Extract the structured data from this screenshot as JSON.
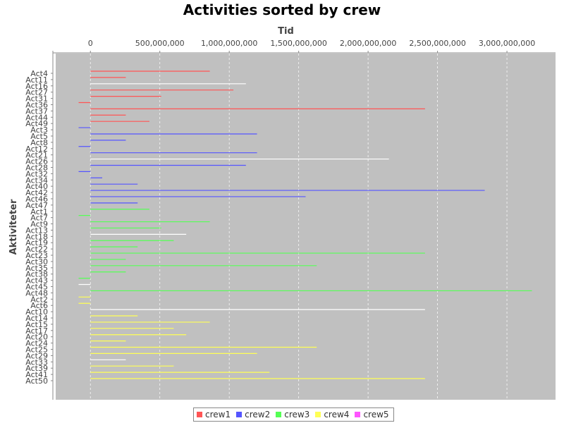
{
  "chart_data": {
    "type": "gantt",
    "title": "Activities sorted by crew",
    "xlabel": "Tid",
    "ylabel": "Aktiviteter",
    "xlim": [
      -250000000,
      3350000000
    ],
    "x_ticks": [
      {
        "value": 0,
        "label": "0"
      },
      {
        "value": 500000000,
        "label": "500,000,000"
      },
      {
        "value": 1000000000,
        "label": "1,000,000,000"
      },
      {
        "value": 1500000000,
        "label": "1,500,000,000"
      },
      {
        "value": 2000000000,
        "label": "2,000,000,000"
      },
      {
        "value": 2500000000,
        "label": "2,500,000,000"
      },
      {
        "value": 3000000000,
        "label": "3,000,000,000"
      }
    ],
    "grid": true,
    "background_color": "#c0c0c0",
    "legend_position": "bottom",
    "series": [
      {
        "name": "crew1",
        "color": "#ff5555"
      },
      {
        "name": "crew2",
        "color": "#5555ff"
      },
      {
        "name": "crew3",
        "color": "#55ff55"
      },
      {
        "name": "crew4",
        "color": "#ffff55"
      },
      {
        "name": "crew5",
        "color": "#ff55ff"
      }
    ],
    "categories": [
      "Act4",
      "Act11",
      "Act16",
      "Act27",
      "Act31",
      "Act36",
      "Act37",
      "Act44",
      "Act49",
      "Act3",
      "Act5",
      "Act8",
      "Act12",
      "Act21",
      "Act26",
      "Act28",
      "Act32",
      "Act34",
      "Act40",
      "Act42",
      "Act46",
      "Act47",
      "Act1",
      "Act7",
      "Act9",
      "Act13",
      "Act18",
      "Act19",
      "Act22",
      "Act23",
      "Act30",
      "Act35",
      "Act38",
      "Act43",
      "Act45",
      "Act48",
      "Act2",
      "Act6",
      "Act10",
      "Act14",
      "Act15",
      "Act17",
      "Act20",
      "Act24",
      "Act25",
      "Act29",
      "Act33",
      "Act39",
      "Act41",
      "Act50"
    ],
    "bars": [
      {
        "activity": "Act4",
        "crew": "crew1",
        "start": 0,
        "end": 860000000
      },
      {
        "activity": "Act11",
        "crew": "crew1",
        "start": 0,
        "end": 255000000
      },
      {
        "activity": "Act16",
        "crew": "white",
        "start": 0,
        "end": 1120000000
      },
      {
        "activity": "Act27",
        "crew": "crew1",
        "start": 0,
        "end": 1030000000
      },
      {
        "activity": "Act31",
        "crew": "crew1",
        "start": 0,
        "end": 510000000
      },
      {
        "activity": "Act36",
        "crew": "crew1",
        "start": -85000000,
        "end": 0
      },
      {
        "activity": "Act37",
        "crew": "crew1",
        "start": 0,
        "end": 2410000000
      },
      {
        "activity": "Act44",
        "crew": "crew1",
        "start": 0,
        "end": 255000000
      },
      {
        "activity": "Act49",
        "crew": "crew1",
        "start": 0,
        "end": 425000000
      },
      {
        "activity": "Act3",
        "crew": "crew2",
        "start": -85000000,
        "end": 0
      },
      {
        "activity": "Act5",
        "crew": "crew2",
        "start": 0,
        "end": 1200000000
      },
      {
        "activity": "Act8",
        "crew": "crew2",
        "start": 0,
        "end": 255000000
      },
      {
        "activity": "Act12",
        "crew": "crew2",
        "start": -85000000,
        "end": 0
      },
      {
        "activity": "Act21",
        "crew": "crew2",
        "start": 0,
        "end": 1200000000
      },
      {
        "activity": "Act26",
        "crew": "white",
        "start": 0,
        "end": 2150000000
      },
      {
        "activity": "Act28",
        "crew": "crew2",
        "start": 0,
        "end": 1120000000
      },
      {
        "activity": "Act32",
        "crew": "crew2",
        "start": -85000000,
        "end": 0
      },
      {
        "activity": "Act34",
        "crew": "crew2",
        "start": 0,
        "end": 85000000
      },
      {
        "activity": "Act40",
        "crew": "crew2",
        "start": 0,
        "end": 340000000
      },
      {
        "activity": "Act42",
        "crew": "crew2",
        "start": 0,
        "end": 2840000000
      },
      {
        "activity": "Act46",
        "crew": "crew2",
        "start": 0,
        "end": 1550000000
      },
      {
        "activity": "Act47",
        "crew": "crew2",
        "start": 0,
        "end": 340000000
      },
      {
        "activity": "Act1",
        "crew": "crew3",
        "start": 0,
        "end": 425000000
      },
      {
        "activity": "Act7",
        "crew": "crew3",
        "start": -85000000,
        "end": 0
      },
      {
        "activity": "Act9",
        "crew": "crew3",
        "start": 0,
        "end": 860000000
      },
      {
        "activity": "Act13",
        "crew": "crew3",
        "start": 0,
        "end": 510000000
      },
      {
        "activity": "Act18",
        "crew": "white",
        "start": 0,
        "end": 690000000
      },
      {
        "activity": "Act19",
        "crew": "crew3",
        "start": 0,
        "end": 600000000
      },
      {
        "activity": "Act22",
        "crew": "crew3",
        "start": 0,
        "end": 340000000
      },
      {
        "activity": "Act23",
        "crew": "crew3",
        "start": 0,
        "end": 2410000000
      },
      {
        "activity": "Act30",
        "crew": "crew3",
        "start": 0,
        "end": 255000000
      },
      {
        "activity": "Act35",
        "crew": "crew3",
        "start": 0,
        "end": 1630000000
      },
      {
        "activity": "Act38",
        "crew": "crew3",
        "start": 0,
        "end": 255000000
      },
      {
        "activity": "Act43",
        "crew": "crew3",
        "start": -85000000,
        "end": 0
      },
      {
        "activity": "Act45",
        "crew": "white",
        "start": -85000000,
        "end": 0
      },
      {
        "activity": "Act48",
        "crew": "crew3",
        "start": 0,
        "end": 3180000000
      },
      {
        "activity": "Act2",
        "crew": "crew4",
        "start": -85000000,
        "end": 0
      },
      {
        "activity": "Act6",
        "crew": "crew4",
        "start": -85000000,
        "end": 0
      },
      {
        "activity": "Act10",
        "crew": "white",
        "start": 0,
        "end": 2410000000
      },
      {
        "activity": "Act14",
        "crew": "crew4",
        "start": 0,
        "end": 340000000
      },
      {
        "activity": "Act15",
        "crew": "crew4",
        "start": 0,
        "end": 860000000
      },
      {
        "activity": "Act17",
        "crew": "crew4",
        "start": 0,
        "end": 600000000
      },
      {
        "activity": "Act20",
        "crew": "crew4",
        "start": 0,
        "end": 690000000
      },
      {
        "activity": "Act24",
        "crew": "crew4",
        "start": 0,
        "end": 255000000
      },
      {
        "activity": "Act25",
        "crew": "crew4",
        "start": 0,
        "end": 1630000000
      },
      {
        "activity": "Act29",
        "crew": "crew4",
        "start": 0,
        "end": 1200000000
      },
      {
        "activity": "Act33",
        "crew": "white",
        "start": 0,
        "end": 255000000
      },
      {
        "activity": "Act39",
        "crew": "crew4",
        "start": 0,
        "end": 600000000
      },
      {
        "activity": "Act41",
        "crew": "crew4",
        "start": 0,
        "end": 1290000000
      },
      {
        "activity": "Act50",
        "crew": "crew4",
        "start": 0,
        "end": 2410000000
      }
    ]
  }
}
